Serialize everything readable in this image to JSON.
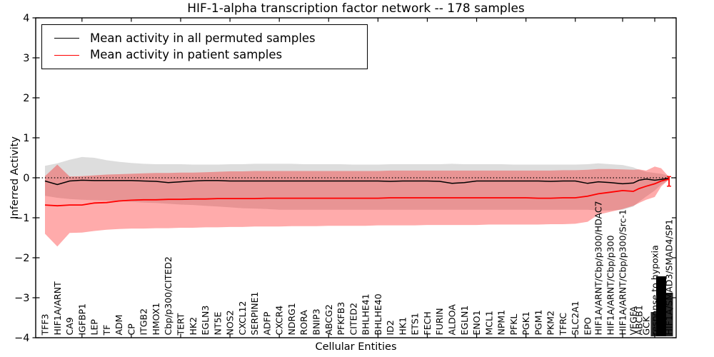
{
  "title": "HIF-1-alpha transcription factor network -- 178 samples",
  "legend": {
    "items": [
      {
        "label": "Mean activity in all permuted samples",
        "color": "#000000"
      },
      {
        "label": "Mean activity in patient samples",
        "color": "#ff0000"
      }
    ]
  },
  "axes": {
    "xlabel": "Cellular Entities",
    "ylabel": "Inferred Activity",
    "yticklabels": [
      "4",
      "3",
      "2",
      "1",
      "0",
      "−1",
      "−2",
      "−3",
      "−4"
    ]
  },
  "chart_data": {
    "type": "line",
    "title": "HIF-1-alpha transcription factor network -- 178 samples",
    "xlabel": "Cellular Entities",
    "ylabel": "Inferred Activity",
    "ylim": [
      -4,
      4
    ],
    "yticks": [
      4,
      3,
      2,
      1,
      0,
      -1,
      -2,
      -3,
      -4
    ],
    "grid": false,
    "zero_line_dotted": true,
    "legend_position": "upper left",
    "categories": [
      "TFF3",
      "HIF1A/ARNT",
      "CA9",
      "IGFBP1",
      "LEP",
      "TF",
      "ADM",
      "CP",
      "ITGB2",
      "HMOX1",
      "Cbp/p300/CITED2",
      "TERT",
      "HK2",
      "EGLN3",
      "NT5E",
      "NOS2",
      "CXCL12",
      "SERPINE1",
      "ADFP",
      "CXCR4",
      "NDRG1",
      "RORA",
      "BNIP3",
      "ABCG2",
      "PFKFB3",
      "CITED2",
      "BHLHE41",
      "BHLHE40",
      "ID2",
      "HK1",
      "ETS1",
      "FECH",
      "FURIN",
      "ALDOA",
      "EGLN1",
      "ENO1",
      "MCL1",
      "NPM1",
      "PFKL",
      "PGK1",
      "PGM1",
      "PKM2",
      "TFRC",
      "SLC2A1",
      "EPO",
      "HIF1A/ARNT/Cbp/p300/HDAC7",
      "HIF1A/ARNT/Cbp/p300",
      "HIF1A/ARNT/Cbp/p300/Src-1",
      "VEGFA",
      "ABCB1",
      "GCK",
      "response to hypoxia",
      "",
      "HIF1A/SMAD3/SMAD4/SP1"
    ],
    "series": [
      {
        "name": "Mean activity in all permuted samples",
        "color": "#000000",
        "values": [
          -0.08,
          -0.17,
          -0.08,
          -0.06,
          -0.07,
          -0.07,
          -0.07,
          -0.07,
          -0.08,
          -0.09,
          -0.12,
          -0.1,
          -0.08,
          -0.07,
          -0.07,
          -0.08,
          -0.08,
          -0.08,
          -0.08,
          -0.08,
          -0.08,
          -0.08,
          -0.08,
          -0.08,
          -0.08,
          -0.08,
          -0.08,
          -0.08,
          -0.09,
          -0.08,
          -0.08,
          -0.08,
          -0.09,
          -0.14,
          -0.12,
          -0.08,
          -0.08,
          -0.08,
          -0.08,
          -0.08,
          -0.08,
          -0.09,
          -0.08,
          -0.08,
          -0.14,
          -0.1,
          -0.12,
          -0.15,
          -0.13,
          -0.06,
          -0.03,
          -0.06,
          -0.04,
          -0.01
        ]
      },
      {
        "name": "Mean activity in patient samples",
        "color": "#ff0000",
        "values": [
          -0.68,
          -0.7,
          -0.68,
          -0.68,
          -0.63,
          -0.62,
          -0.58,
          -0.56,
          -0.55,
          -0.55,
          -0.54,
          -0.54,
          -0.53,
          -0.53,
          -0.52,
          -0.52,
          -0.52,
          -0.52,
          -0.51,
          -0.51,
          -0.51,
          -0.51,
          -0.51,
          -0.51,
          -0.51,
          -0.51,
          -0.51,
          -0.51,
          -0.5,
          -0.5,
          -0.5,
          -0.5,
          -0.5,
          -0.5,
          -0.5,
          -0.5,
          -0.5,
          -0.5,
          -0.5,
          -0.5,
          -0.51,
          -0.51,
          -0.5,
          -0.5,
          -0.46,
          -0.4,
          -0.36,
          -0.32,
          -0.34,
          -0.27,
          -0.21,
          -0.15,
          -0.08,
          -0.03
        ]
      }
    ],
    "bands": [
      {
        "name": "permuted samples std band",
        "color": "rgba(128,128,128,0.27)",
        "upper": [
          0.3,
          0.36,
          0.45,
          0.52,
          0.5,
          0.44,
          0.4,
          0.37,
          0.35,
          0.34,
          0.34,
          0.34,
          0.33,
          0.33,
          0.33,
          0.34,
          0.34,
          0.35,
          0.35,
          0.35,
          0.35,
          0.34,
          0.34,
          0.34,
          0.34,
          0.33,
          0.33,
          0.33,
          0.34,
          0.34,
          0.34,
          0.34,
          0.34,
          0.35,
          0.34,
          0.34,
          0.34,
          0.34,
          0.33,
          0.33,
          0.33,
          0.33,
          0.33,
          0.33,
          0.34,
          0.36,
          0.34,
          0.32,
          0.26,
          0.2,
          0.15,
          0.12,
          0.1,
          0.05
        ],
        "lower": [
          -0.45,
          -0.5,
          -0.53,
          -0.55,
          -0.56,
          -0.57,
          -0.58,
          -0.6,
          -0.62,
          -0.63,
          -0.65,
          -0.67,
          -0.68,
          -0.7,
          -0.72,
          -0.74,
          -0.76,
          -0.77,
          -0.78,
          -0.8,
          -0.8,
          -0.8,
          -0.8,
          -0.8,
          -0.8,
          -0.8,
          -0.8,
          -0.8,
          -0.8,
          -0.8,
          -0.8,
          -0.8,
          -0.8,
          -0.8,
          -0.8,
          -0.8,
          -0.8,
          -0.8,
          -0.8,
          -0.8,
          -0.8,
          -0.8,
          -0.8,
          -0.8,
          -0.8,
          -0.82,
          -0.82,
          -0.8,
          -0.72,
          -0.6,
          -0.47,
          -0.32,
          -0.17,
          -0.06
        ]
      },
      {
        "name": "patient samples std band",
        "color": "rgba(255,0,0,0.33)",
        "upper": [
          0.04,
          0.33,
          0.03,
          0.04,
          0.06,
          0.08,
          0.09,
          0.1,
          0.11,
          0.12,
          0.12,
          0.13,
          0.13,
          0.14,
          0.15,
          0.16,
          0.16,
          0.17,
          0.17,
          0.17,
          0.17,
          0.17,
          0.17,
          0.17,
          0.17,
          0.17,
          0.17,
          0.17,
          0.18,
          0.18,
          0.18,
          0.18,
          0.18,
          0.18,
          0.18,
          0.18,
          0.18,
          0.18,
          0.18,
          0.18,
          0.18,
          0.18,
          0.19,
          0.19,
          0.2,
          0.22,
          0.22,
          0.21,
          0.2,
          0.21,
          0.18,
          0.28,
          0.24,
          0.02
        ],
        "lower": [
          -1.4,
          -1.72,
          -1.38,
          -1.37,
          -1.33,
          -1.3,
          -1.28,
          -1.27,
          -1.27,
          -1.26,
          -1.26,
          -1.25,
          -1.25,
          -1.24,
          -1.24,
          -1.23,
          -1.23,
          -1.22,
          -1.22,
          -1.22,
          -1.21,
          -1.21,
          -1.21,
          -1.2,
          -1.2,
          -1.2,
          -1.2,
          -1.19,
          -1.19,
          -1.19,
          -1.19,
          -1.18,
          -1.18,
          -1.18,
          -1.18,
          -1.18,
          -1.17,
          -1.17,
          -1.17,
          -1.17,
          -1.17,
          -1.16,
          -1.16,
          -1.15,
          -1.1,
          -0.92,
          -0.85,
          -0.78,
          -0.7,
          -0.63,
          -0.55,
          -0.48,
          -0.22,
          -0.04
        ]
      }
    ],
    "last_point_errorbar": {
      "series": "Mean activity in patient samples",
      "top": 0.03,
      "bottom": -0.21
    },
    "overprint_columns": [
      {
        "index": 51,
        "full": false,
        "note": "bottom of label overprinted by other labels"
      },
      {
        "index": 52,
        "full": true,
        "note": "unreadable overlapping labels"
      },
      {
        "index": 53,
        "full": false,
        "note": "bottom of label overprinted by other labels"
      }
    ]
  }
}
